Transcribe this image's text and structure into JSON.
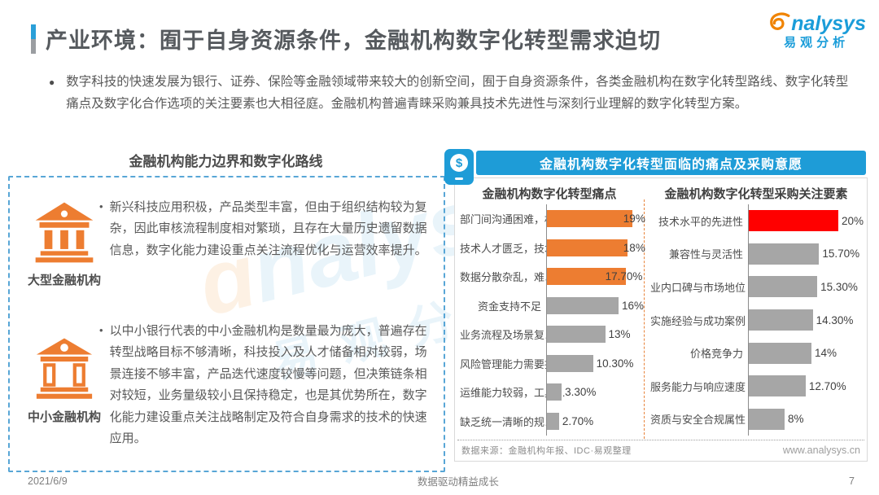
{
  "page": {
    "title": "产业环境：囿于自身资源条件，金融机构数字化转型需求迫切",
    "logo": {
      "brand": "nalysys",
      "brand_cn": "易观分析"
    },
    "intro": {
      "bullet": "●",
      "text": "数字科技的快速发展为银行、证券、保险等金融领域带来较大的创新空间，囿于自身资源条件，各类金融机构在数字化转型路线、数字化转型痛点及数字化合作选项的关注要素也大相径庭。金融机构普遍青睐采购兼具技术先进性与深刻行业理解的数字化转型方案。"
    },
    "footer": {
      "date": "2021/6/9",
      "slogan": "数据驱动精益成长",
      "page_number": "7"
    }
  },
  "watermark": {
    "line1": "nalysys",
    "line2": "易观分析"
  },
  "left_panel": {
    "title": "金融机构能力边界和数字化路线",
    "items": [
      {
        "bullet": "•",
        "icon": "bank-large-icon",
        "label": "大型金融机构",
        "text": "新兴科技应用积极，产品类型丰富，但由于组织结构较为复杂，因此审核流程制度相对繁琐，且存在大量历史遗留数据信息，数字化能力建设重点关注流程优化与运营效率提升。"
      },
      {
        "bullet": "•",
        "icon": "bank-small-icon",
        "label": "中小金融机构",
        "text": "以中小银行代表的中小金融机构是数量最为庞大，普遍存在转型战略目标不够清晰，科技投入及人才储备相对较弱，场景连接不够丰富，产品迭代速度较慢等问题，但决策链条相对较短，业务量级较小且保持稳定，也是其优势所在，数字化能力建设重点关注战略制定及符合自身需求的技术的快速应用。"
      }
    ]
  },
  "right_panel": {
    "banner": "金融机构数字化转型面临的痛点及采购意愿",
    "banner_icon": "money-circle-icon",
    "source": "数据来源：金融机构年报、IDC·易观整理",
    "website": "www.analysys.cn",
    "colors": {
      "banner_bg": "#1e9cd7",
      "highlight_orange": "#ed7d31",
      "highlight_red": "#ff0000",
      "bar_gray": "#a6a6a6"
    }
  },
  "chart_data": [
    {
      "type": "bar",
      "orientation": "horizontal",
      "title": "金融机构数字化转型痛点",
      "axis_max": 20,
      "unit": "%",
      "items": [
        {
          "label": "部门间沟通困难，权…",
          "value": 19,
          "display": "19%",
          "color": "#ed7d31"
        },
        {
          "label": "技术人才匮乏，技术…",
          "value": 18,
          "display": "18%",
          "color": "#ed7d31"
        },
        {
          "label": "数据分散杂乱，难以…",
          "value": 17.7,
          "display": "17.70%",
          "color": "#ed7d31"
        },
        {
          "label": "资金支持不足",
          "value": 16,
          "display": "16%",
          "color": "#a6a6a6"
        },
        {
          "label": "业务流程及场景复…",
          "value": 13,
          "display": "13%",
          "color": "#a6a6a6"
        },
        {
          "label": "风险管理能力需要提高",
          "value": 10.3,
          "display": "10.30%",
          "color": "#a6a6a6"
        },
        {
          "label": "运维能力较弱，工具…",
          "value": 3.3,
          "display": "3.30%",
          "color": "#a6a6a6"
        },
        {
          "label": "缺乏统一清晰的规…",
          "value": 2.7,
          "display": "2.70%",
          "color": "#a6a6a6"
        }
      ]
    },
    {
      "type": "bar",
      "orientation": "horizontal",
      "title": "金融机构数字化转型采购关注要素",
      "axis_max": 20,
      "unit": "%",
      "items": [
        {
          "label": "技术水平的先进性",
          "value": 20,
          "display": "20%",
          "color": "#ff0000"
        },
        {
          "label": "兼容性与灵活性",
          "value": 15.7,
          "display": "15.70%",
          "color": "#a6a6a6"
        },
        {
          "label": "业内口碑与市场地位",
          "value": 15.3,
          "display": "15.30%",
          "color": "#a6a6a6"
        },
        {
          "label": "实施经验与成功案例",
          "value": 14.3,
          "display": "14.30%",
          "color": "#a6a6a6"
        },
        {
          "label": "价格竞争力",
          "value": 14,
          "display": "14%",
          "color": "#a6a6a6"
        },
        {
          "label": "服务能力与响应速度",
          "value": 12.7,
          "display": "12.70%",
          "color": "#a6a6a6"
        },
        {
          "label": "资质与安全合规属性",
          "value": 8,
          "display": "8%",
          "color": "#a6a6a6"
        }
      ]
    }
  ]
}
